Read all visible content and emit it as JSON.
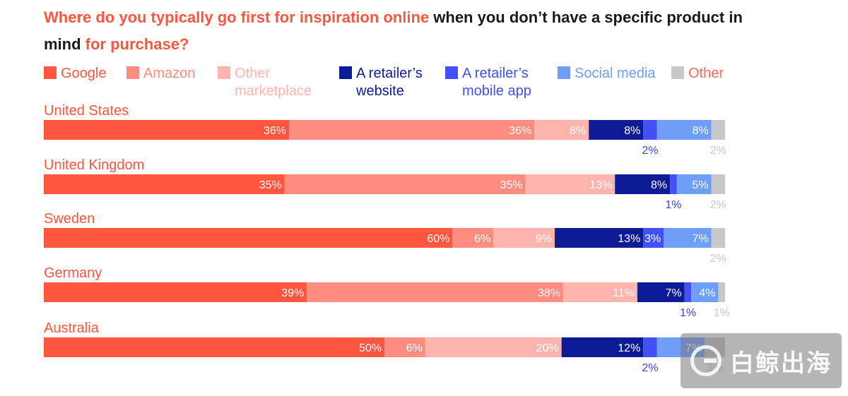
{
  "title": {
    "part1": "Where do you typically go first for inspiration online",
    "part2": " when you don’t have a specific product in mind ",
    "part3": "for purchase?"
  },
  "chart_data": {
    "type": "bar",
    "orientation": "horizontal",
    "stacked": true,
    "categories": [
      "United States",
      "United Kingdom",
      "Sweden",
      "Germany",
      "Australia"
    ],
    "series": [
      {
        "name": "Google",
        "color": "#ff5640",
        "values": [
          36,
          35,
          60,
          39,
          50
        ]
      },
      {
        "name": "Amazon",
        "color": "#ff8c80",
        "values": [
          36,
          35,
          6,
          38,
          6
        ]
      },
      {
        "name": "Other\nmarketplace",
        "color": "#ffb5ae",
        "values": [
          8,
          13,
          9,
          11,
          20
        ]
      },
      {
        "name": "A retailer’s\nwebsite",
        "color": "#0d1b96",
        "values": [
          8,
          8,
          13,
          7,
          12
        ]
      },
      {
        "name": "A retailer’s\nmobile app",
        "color": "#4250f5",
        "values": [
          2,
          1,
          3,
          1,
          2
        ]
      },
      {
        "name": "Social media",
        "color": "#6e9ef8",
        "values": [
          8,
          5,
          7,
          4,
          7
        ]
      },
      {
        "name": "Other",
        "color": "#c8c8c8",
        "values": [
          2,
          2,
          2,
          1,
          3
        ]
      }
    ],
    "value_format": "%",
    "legend_position": "top",
    "grid": false
  },
  "watermark": {
    "text": "白鲸出海"
  }
}
